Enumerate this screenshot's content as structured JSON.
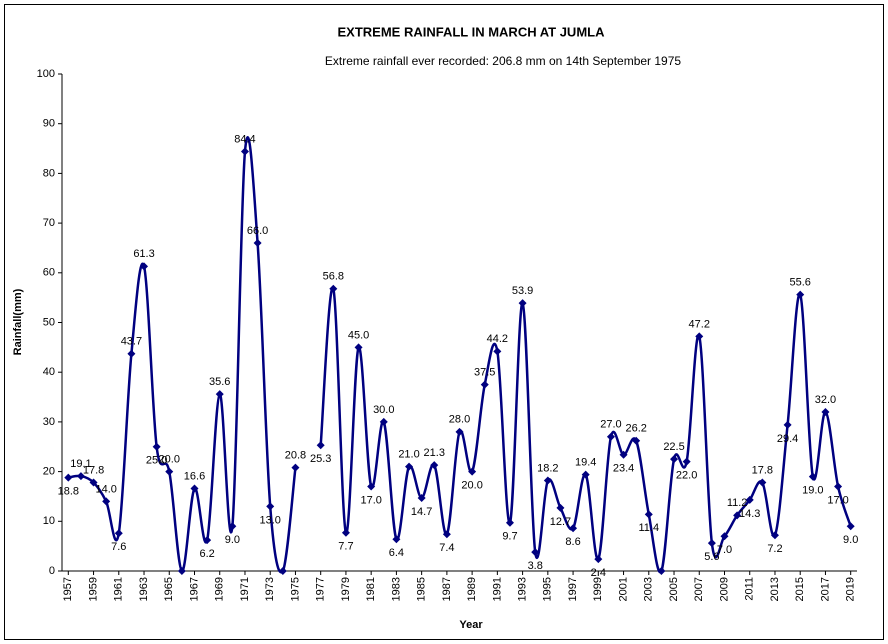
{
  "chart_data": {
    "type": "line",
    "title": "EXTREME RAINFALL IN MARCH AT JUMLA",
    "subtitle": "Extreme rainfall ever recorded: 206.8 mm on 14th September 1975",
    "x_label": "Year",
    "y_label": "Rainfall(mm)",
    "x": [
      1957,
      1958,
      1959,
      1960,
      1961,
      1962,
      1963,
      1964,
      1965,
      1966,
      1967,
      1968,
      1969,
      1970,
      1971,
      1972,
      1973,
      1974,
      1975,
      1976,
      1977,
      1978,
      1979,
      1980,
      1981,
      1982,
      1983,
      1984,
      1985,
      1986,
      1987,
      1988,
      1989,
      1990,
      1991,
      1992,
      1993,
      1994,
      1995,
      1996,
      1997,
      1998,
      1999,
      2000,
      2001,
      2002,
      2003,
      2004,
      2005,
      2006,
      2007,
      2008,
      2009,
      2010,
      2011,
      2012,
      2013,
      2014,
      2015,
      2016,
      2017,
      2018,
      2019
    ],
    "series": [
      {
        "name": "Rainfall",
        "color": "#000080",
        "values": [
          18.8,
          19.1,
          17.8,
          14.0,
          7.6,
          43.7,
          61.3,
          25.0,
          20.0,
          0,
          16.6,
          6.2,
          35.6,
          9.0,
          84.4,
          66.0,
          13.0,
          0,
          20.8,
          null,
          25.3,
          56.8,
          7.7,
          45.0,
          17.0,
          30.0,
          6.4,
          21.0,
          14.7,
          21.3,
          7.4,
          28.0,
          20.0,
          37.5,
          44.2,
          9.7,
          53.9,
          3.8,
          18.2,
          12.7,
          8.6,
          19.4,
          2.4,
          27.0,
          23.4,
          26.2,
          11.4,
          0,
          22.5,
          22.0,
          47.2,
          5.6,
          7.0,
          11.2,
          14.3,
          17.8,
          7.2,
          29.4,
          55.6,
          19.0,
          32.0,
          17.0,
          9.0
        ],
        "value_labels": [
          "18.8",
          "19.1",
          "17.8",
          "14.0",
          "7.6",
          "43.7",
          "61.3",
          "25.0",
          "20.0",
          null,
          "16.6",
          "6.2",
          "35.6",
          "9.0",
          "84.4",
          "66.0",
          "13.0",
          null,
          "20.8",
          null,
          "25.3",
          "56.8",
          "7.7",
          "45.0",
          "17.0",
          "30.0",
          "6.4",
          "21.0",
          "14.7",
          "21.3",
          "7.4",
          "28.0",
          "20.0",
          "37.5",
          "44.2",
          "9.7",
          "53.9",
          "3.8",
          "18.2",
          "12.7",
          "8.6",
          "19.4",
          "2.4",
          "27.0",
          "23.4",
          "26.2",
          "11.4",
          null,
          "22.5",
          "22.0",
          "47.2",
          "5.6",
          "7.0",
          "11.2",
          "14.3",
          "17.8",
          "7.2",
          "29.4",
          "55.6",
          "19.0",
          "32.0",
          "17.0",
          "9.0"
        ]
      }
    ],
    "xlim": [
      1956.5,
      2019.5
    ],
    "xticks": [
      1957,
      1959,
      1961,
      1963,
      1965,
      1967,
      1969,
      1971,
      1973,
      1975,
      1977,
      1979,
      1981,
      1983,
      1985,
      1987,
      1989,
      1991,
      1993,
      1995,
      1997,
      1999,
      2001,
      2003,
      2005,
      2007,
      2009,
      2011,
      2013,
      2015,
      2017,
      2019
    ],
    "ylim": [
      0,
      100
    ],
    "yticks": [
      0,
      10,
      20,
      30,
      40,
      50,
      60,
      70,
      80,
      90,
      100
    ],
    "grid": false
  }
}
